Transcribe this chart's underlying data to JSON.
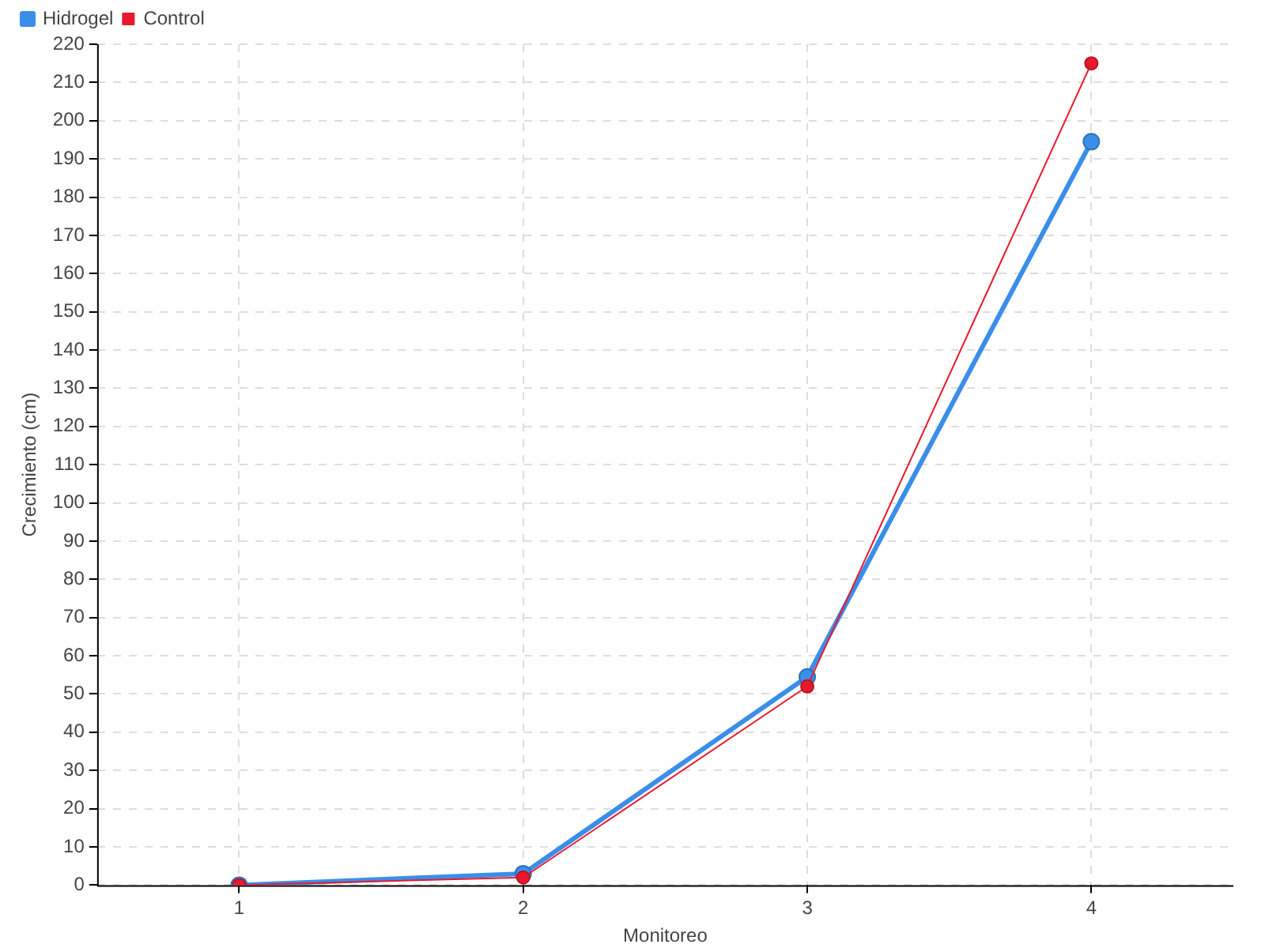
{
  "chart_data": {
    "type": "line",
    "xlabel": "Monitoreo",
    "ylabel": "Crecimiento (cm)",
    "x": [
      1,
      2,
      3,
      4
    ],
    "xlim": [
      0.5,
      4.5
    ],
    "xticks": [
      1,
      2,
      3,
      4
    ],
    "ylim": [
      0,
      220
    ],
    "yticks": [
      0,
      10,
      20,
      30,
      40,
      50,
      60,
      70,
      80,
      90,
      100,
      110,
      120,
      130,
      140,
      150,
      160,
      170,
      180,
      190,
      200,
      210,
      220
    ],
    "series": [
      {
        "name": "Hidrogel",
        "color": "#3b8ee8",
        "values": [
          0,
          3,
          54.5,
          194.5
        ]
      },
      {
        "name": "Control",
        "color": "#e8192c",
        "values": [
          0,
          2,
          52,
          215
        ]
      }
    ],
    "grid": true,
    "legend": "top left",
    "marker": "circle",
    "line_style": "solid"
  }
}
